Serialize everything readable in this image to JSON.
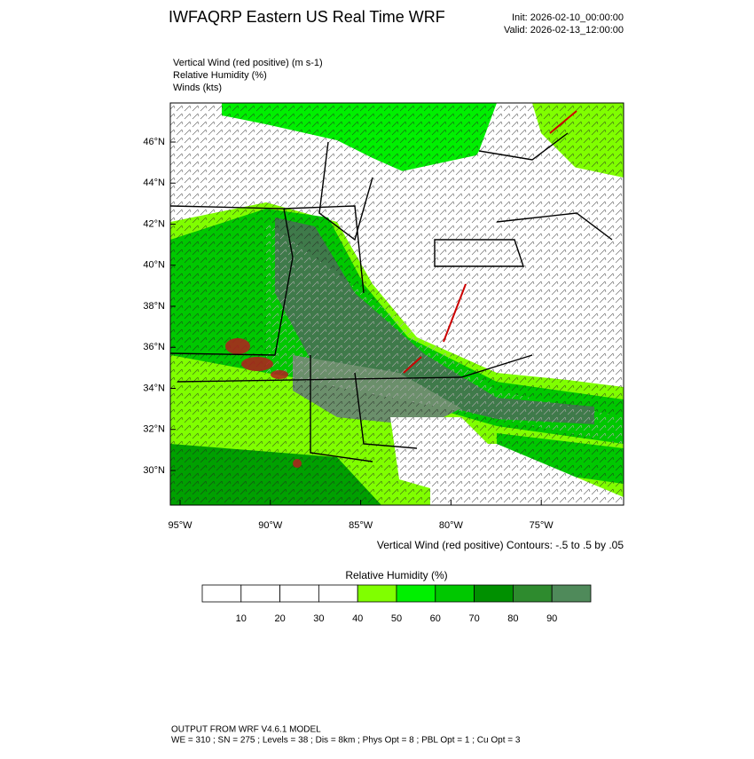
{
  "header": {
    "title": "IWFAQRP Eastern US Real Time WRF",
    "init": "Init: 2026-02-10_00:00:00",
    "valid": "Valid: 2026-02-13_12:00:00"
  },
  "fields": [
    "Vertical Wind (red positive)   (m s-1)",
    "Relative Humidity   (%)",
    "Winds   (kts)"
  ],
  "map": {
    "lat_labels": [
      "46°N",
      "44°N",
      "42°N",
      "40°N",
      "38°N",
      "36°N",
      "34°N",
      "32°N",
      "30°N"
    ],
    "lon_labels": [
      "95°W",
      "90°W",
      "85°W",
      "80°W",
      "75°W"
    ],
    "contour_note": "Vertical Wind (red positive) Contours: -.5 to .5 by .05"
  },
  "colorbar": {
    "title": "Relative Humidity  (%)",
    "ticks": [
      10,
      20,
      30,
      40,
      50,
      60,
      70,
      80,
      90
    ],
    "colors": [
      "#ffffff",
      "#ffffff",
      "#ffffff",
      "#ffffff",
      "#80ff00",
      "#00f000",
      "#00c800",
      "#009000",
      "#2e8b2e",
      "#4f8a5a"
    ]
  },
  "footer": {
    "line1": "OUTPUT FROM WRF V4.6.1 MODEL",
    "line2": "WE = 310 ; SN = 275 ; Levels = 38 ; Dis = 8km ; Phys Opt = 8 ; PBL Opt = 1 ; Cu Opt = 3"
  }
}
